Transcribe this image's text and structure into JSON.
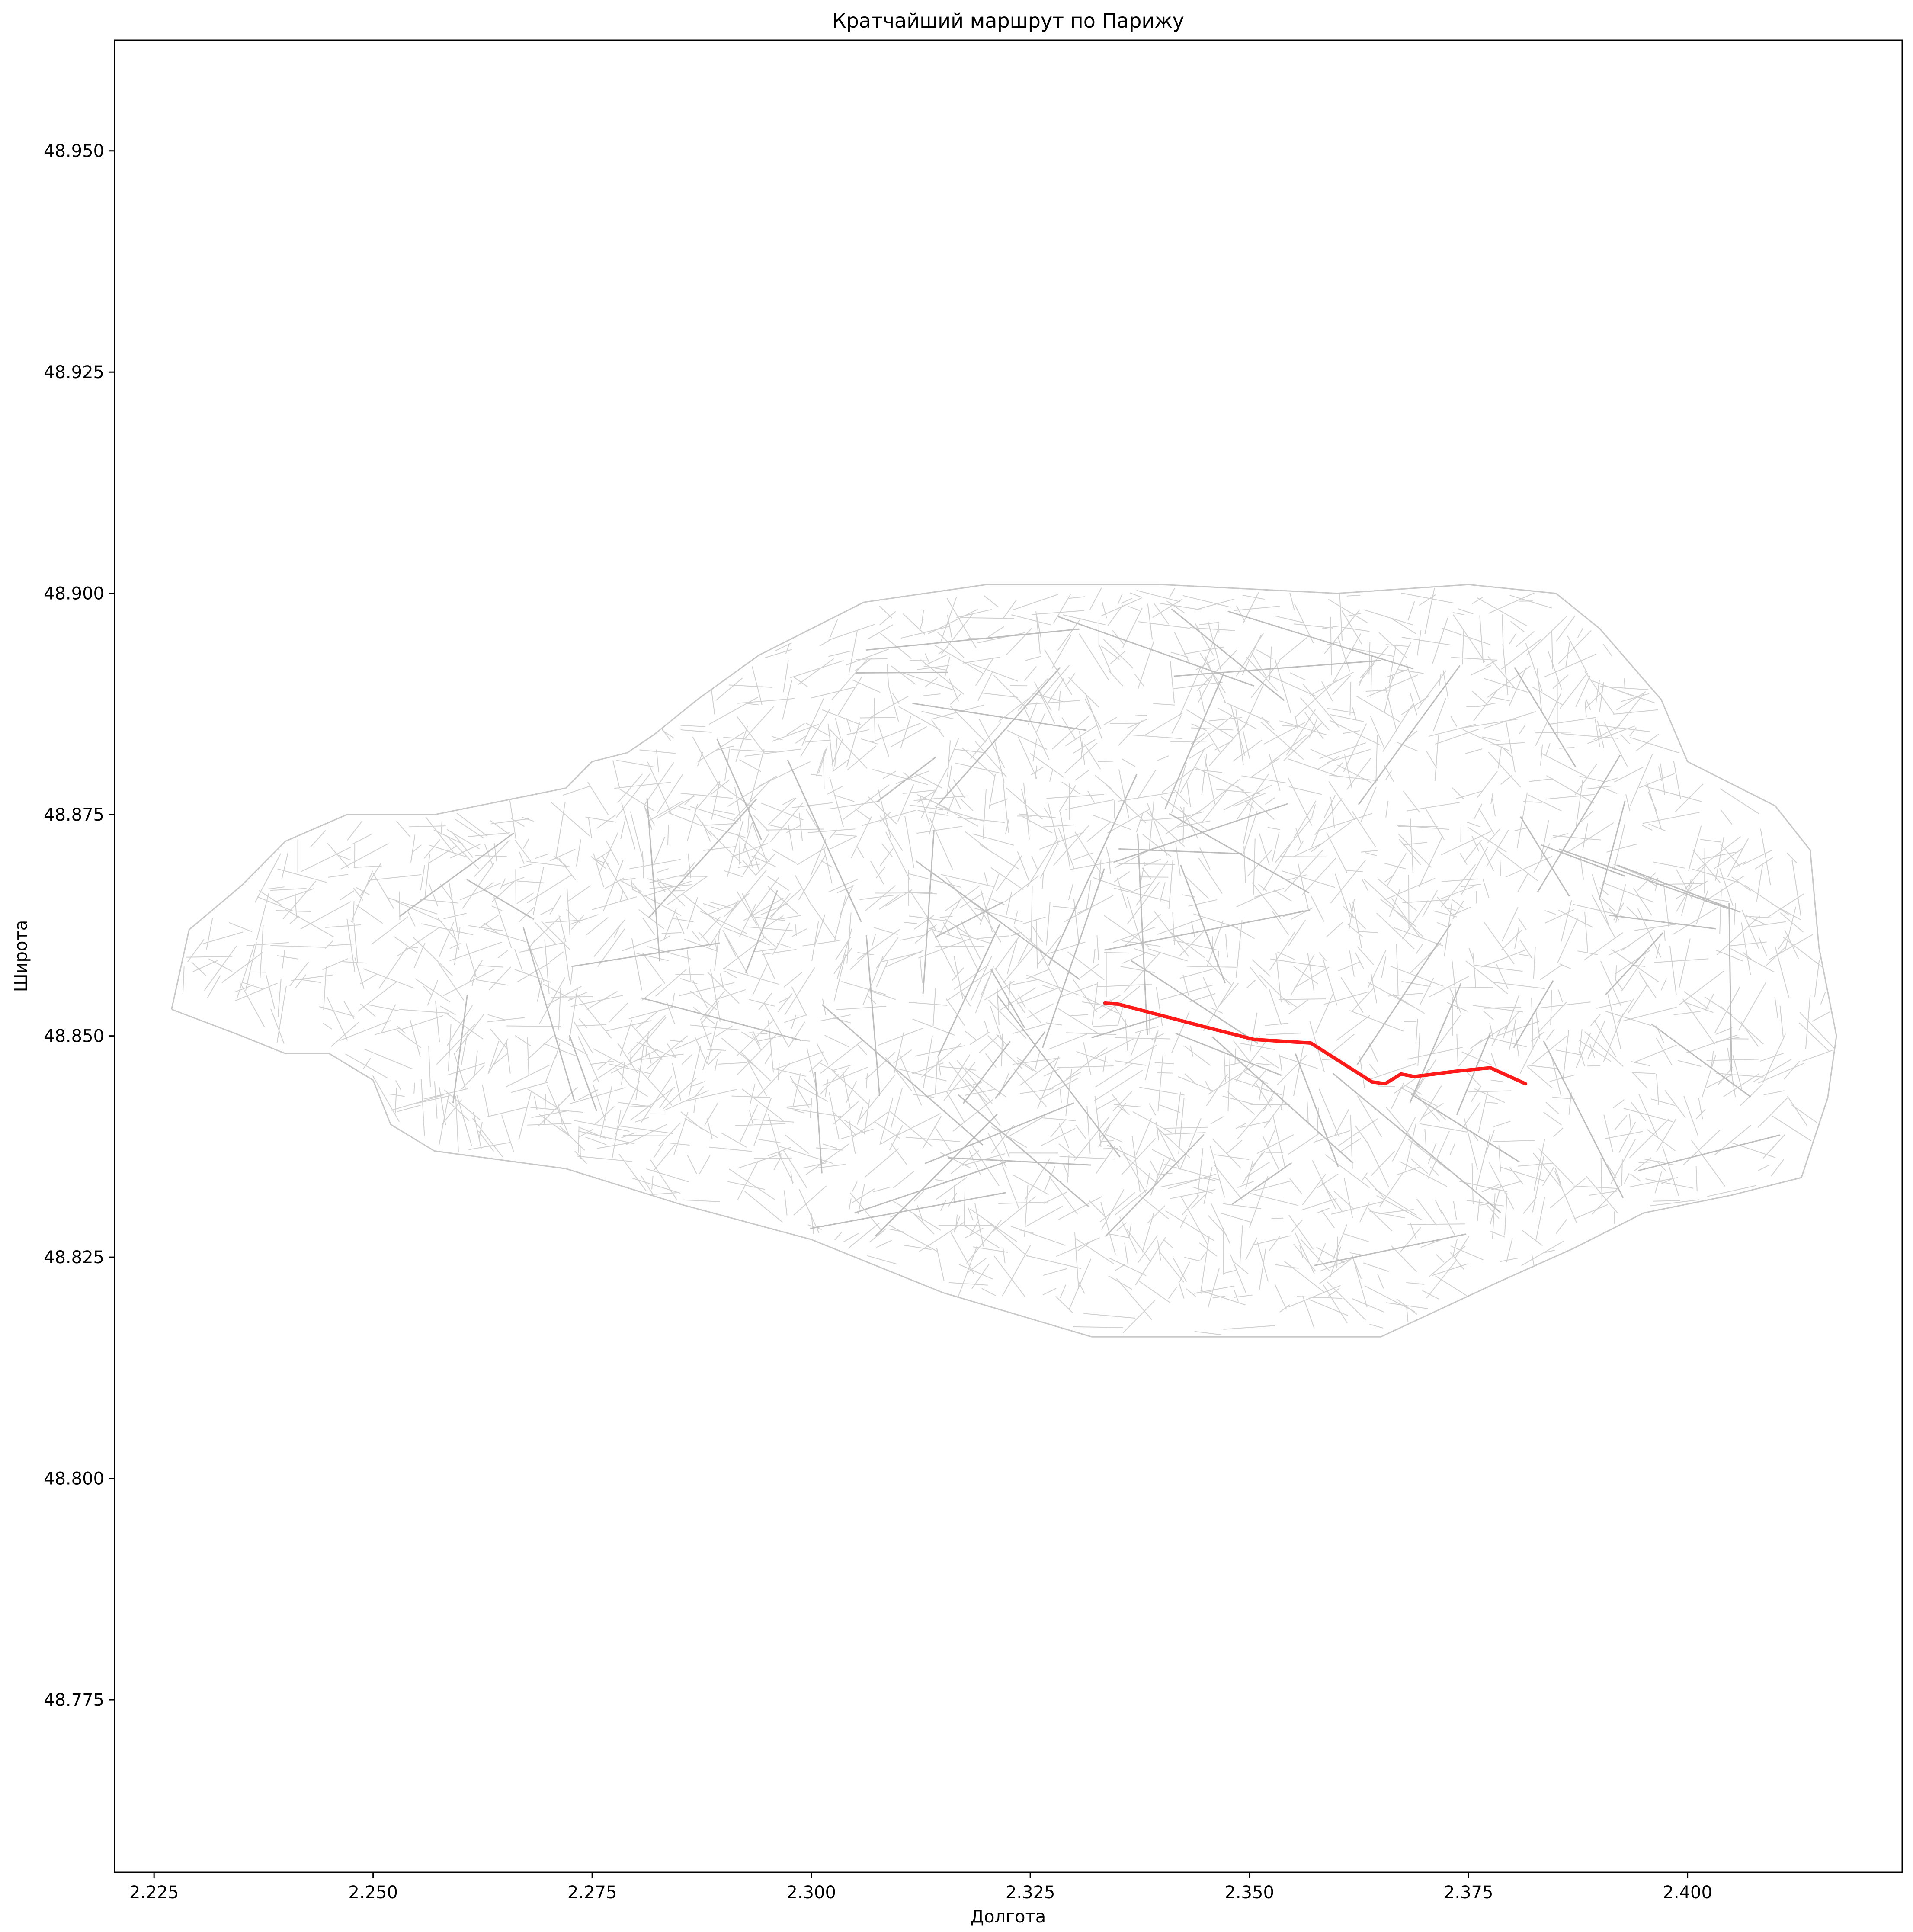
{
  "chart_data": {
    "type": "map",
    "title": "Кратчайший маршрут по Парижу",
    "xlabel": "Долгота",
    "ylabel": "Широта",
    "xlim": [
      2.2205,
      2.4245
    ],
    "ylim": [
      48.7555,
      48.9625
    ],
    "xticks": [
      2.225,
      2.25,
      2.275,
      2.3,
      2.325,
      2.35,
      2.375,
      2.4
    ],
    "xtick_labels": [
      "2.225",
      "2.250",
      "2.275",
      "2.300",
      "2.325",
      "2.350",
      "2.375",
      "2.400"
    ],
    "yticks": [
      48.775,
      48.8,
      48.825,
      48.85,
      48.875,
      48.9,
      48.925,
      48.95
    ],
    "ytick_labels": [
      "48.775",
      "48.800",
      "48.825",
      "48.850",
      "48.875",
      "48.900",
      "48.925",
      "48.950"
    ],
    "grid": false,
    "network_color": "#c8c8c8",
    "route_color": "#ff1a1a",
    "network_boundary": [
      [
        2.227,
        48.853
      ],
      [
        2.229,
        48.862
      ],
      [
        2.235,
        48.867
      ],
      [
        2.24,
        48.872
      ],
      [
        2.247,
        48.875
      ],
      [
        2.257,
        48.875
      ],
      [
        2.262,
        48.876
      ],
      [
        2.272,
        48.878
      ],
      [
        2.275,
        48.881
      ],
      [
        2.279,
        48.882
      ],
      [
        2.282,
        48.884
      ],
      [
        2.287,
        48.888
      ],
      [
        2.294,
        48.893
      ],
      [
        2.306,
        48.899
      ],
      [
        2.32,
        48.901
      ],
      [
        2.34,
        48.901
      ],
      [
        2.36,
        48.9
      ],
      [
        2.375,
        48.901
      ],
      [
        2.385,
        48.9
      ],
      [
        2.39,
        48.896
      ],
      [
        2.397,
        48.888
      ],
      [
        2.4,
        48.881
      ],
      [
        2.41,
        48.876
      ],
      [
        2.414,
        48.871
      ],
      [
        2.415,
        48.86
      ],
      [
        2.417,
        48.85
      ],
      [
        2.416,
        48.843
      ],
      [
        2.413,
        48.834
      ],
      [
        2.405,
        48.832
      ],
      [
        2.395,
        48.83
      ],
      [
        2.387,
        48.826
      ],
      [
        2.378,
        48.822
      ],
      [
        2.365,
        48.816
      ],
      [
        2.35,
        48.816
      ],
      [
        2.332,
        48.816
      ],
      [
        2.315,
        48.821
      ],
      [
        2.3,
        48.827
      ],
      [
        2.285,
        48.831
      ],
      [
        2.272,
        48.835
      ],
      [
        2.257,
        48.837
      ],
      [
        2.252,
        48.84
      ],
      [
        2.25,
        48.845
      ],
      [
        2.245,
        48.848
      ],
      [
        2.24,
        48.848
      ],
      [
        2.235,
        48.85
      ],
      [
        2.227,
        48.853
      ]
    ],
    "route": [
      [
        2.3335,
        48.8537
      ],
      [
        2.335,
        48.8536
      ],
      [
        2.34,
        48.8523
      ],
      [
        2.345,
        48.851
      ],
      [
        2.3505,
        48.8496
      ],
      [
        2.357,
        48.8492
      ],
      [
        2.364,
        48.8448
      ],
      [
        2.3655,
        48.8446
      ],
      [
        2.3673,
        48.8457
      ],
      [
        2.3688,
        48.8454
      ],
      [
        2.3735,
        48.846
      ],
      [
        2.3775,
        48.8464
      ],
      [
        2.3815,
        48.8446
      ]
    ]
  }
}
